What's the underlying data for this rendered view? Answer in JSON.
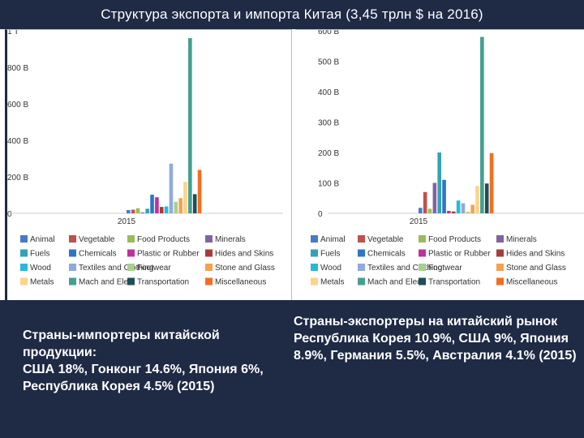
{
  "slide": {
    "title": "Структура экспорта и импорта Китая (3,45 трлн $ на 2016)"
  },
  "captions": {
    "left": {
      "heading": "Страны-импортеры китайской продукции:",
      "body": "США 18%, Гонконг 14.6%, Япония 6%, Республика Корея 4.5% (2015)"
    },
    "right": {
      "heading": "Страны-экспортеры на китайский рынок",
      "body": "Республика Корея 10.9%, США 9%, Япония 8.9%, Германия 5.5%, Австралия 4.1% (2015)"
    }
  },
  "chart_data": [
    {
      "type": "bar",
      "categories": [
        "2015"
      ],
      "ylim": [
        0,
        1000000000000
      ],
      "y_ticks": [
        {
          "value": 0,
          "label": "0"
        },
        {
          "value": 200000000000,
          "label": "200 B"
        },
        {
          "value": 400000000000,
          "label": "400 B"
        },
        {
          "value": 600000000000,
          "label": "600 B"
        },
        {
          "value": 800000000000,
          "label": "800 B"
        },
        {
          "value": 1000000000000,
          "label": "1 T"
        }
      ],
      "grid": false,
      "legend_position": "bottom",
      "series": [
        {
          "name": "Animal",
          "color": "#4a7ac7",
          "values": [
            18000000000
          ]
        },
        {
          "name": "Vegetable",
          "color": "#c0504d",
          "values": [
            20000000000
          ]
        },
        {
          "name": "Food Products",
          "color": "#9bbb59",
          "values": [
            28000000000
          ]
        },
        {
          "name": "Minerals",
          "color": "#8064a2",
          "values": [
            5000000000
          ]
        },
        {
          "name": "Fuels",
          "color": "#31a3b5",
          "values": [
            25000000000
          ]
        },
        {
          "name": "Chemicals",
          "color": "#2e75c9",
          "values": [
            102000000000
          ]
        },
        {
          "name": "Plastic or Rubber",
          "color": "#c0309a",
          "values": [
            88000000000
          ]
        },
        {
          "name": "Hides and Skins",
          "color": "#a93a3a",
          "values": [
            35000000000
          ]
        },
        {
          "name": "Wood",
          "color": "#2ab8d8",
          "values": [
            38000000000
          ]
        },
        {
          "name": "Textiles and Clothing",
          "color": "#8faadc",
          "values": [
            272000000000
          ]
        },
        {
          "name": "Footwear",
          "color": "#a8d08d",
          "values": [
            63000000000
          ]
        },
        {
          "name": "Stone and Glass",
          "color": "#f4a24e",
          "values": [
            83000000000
          ]
        },
        {
          "name": "Metals",
          "color": "#ffd28a",
          "values": [
            172000000000
          ]
        },
        {
          "name": "Mach and Elec",
          "color": "#43a08f",
          "values": [
            960000000000
          ]
        },
        {
          "name": "Transportation",
          "color": "#1f4e5a",
          "values": [
            105000000000
          ]
        },
        {
          "name": "Miscellaneous",
          "color": "#f26f21",
          "values": [
            238000000000
          ]
        }
      ]
    },
    {
      "type": "bar",
      "categories": [
        "2015"
      ],
      "ylim": [
        0,
        600000000000
      ],
      "y_ticks": [
        {
          "value": 0,
          "label": "0"
        },
        {
          "value": 100000000000,
          "label": "100 B"
        },
        {
          "value": 200000000000,
          "label": "200 B"
        },
        {
          "value": 300000000000,
          "label": "300 B"
        },
        {
          "value": 400000000000,
          "label": "400 B"
        },
        {
          "value": 500000000000,
          "label": "500 B"
        },
        {
          "value": 600000000000,
          "label": "600 B"
        }
      ],
      "grid": false,
      "legend_position": "bottom",
      "series": [
        {
          "name": "Animal",
          "color": "#4a7ac7",
          "values": [
            18000000000
          ]
        },
        {
          "name": "Vegetable",
          "color": "#c0504d",
          "values": [
            70000000000
          ]
        },
        {
          "name": "Food Products",
          "color": "#9bbb59",
          "values": [
            15000000000
          ]
        },
        {
          "name": "Minerals",
          "color": "#8064a2",
          "values": [
            100000000000
          ]
        },
        {
          "name": "Fuels",
          "color": "#31a3b5",
          "values": [
            200000000000
          ]
        },
        {
          "name": "Chemicals",
          "color": "#2e75c9",
          "values": [
            110000000000
          ]
        },
        {
          "name": "Plastic or Rubber",
          "color": "#c0309a",
          "values": [
            8000000000
          ]
        },
        {
          "name": "Hides and Skins",
          "color": "#a93a3a",
          "values": [
            6000000000
          ]
        },
        {
          "name": "Wood",
          "color": "#2ab8d8",
          "values": [
            42000000000
          ]
        },
        {
          "name": "Textiles and Clothing",
          "color": "#8faadc",
          "values": [
            33000000000
          ]
        },
        {
          "name": "Footwear",
          "color": "#a8d08d",
          "values": [
            5000000000
          ]
        },
        {
          "name": "Stone and Glass",
          "color": "#f4a24e",
          "values": [
            28000000000
          ]
        },
        {
          "name": "Metals",
          "color": "#ffd28a",
          "values": [
            90000000000
          ]
        },
        {
          "name": "Mach and Elec",
          "color": "#43a08f",
          "values": [
            580000000000
          ]
        },
        {
          "name": "Transportation",
          "color": "#1f4e5a",
          "values": [
            98000000000
          ]
        },
        {
          "name": "Miscellaneous",
          "color": "#f26f21",
          "values": [
            198000000000
          ]
        }
      ]
    }
  ]
}
